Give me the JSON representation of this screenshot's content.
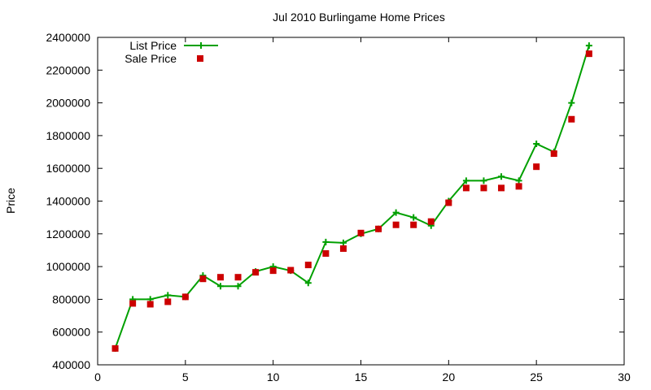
{
  "chart_data": {
    "type": "line",
    "title": "Jul 2010 Burlingame Home Prices",
    "xlabel": "",
    "ylabel": "Price",
    "xlim": [
      0,
      30
    ],
    "ylim": [
      400000,
      2400000
    ],
    "xticks": [
      0,
      5,
      10,
      15,
      20,
      25,
      30
    ],
    "yticks": [
      400000,
      600000,
      800000,
      1000000,
      1200000,
      1400000,
      1600000,
      1800000,
      2000000,
      2200000,
      2400000
    ],
    "grid": false,
    "legend": "top-left",
    "series": [
      {
        "name": "List Price",
        "style": "line-points",
        "marker": "plus",
        "color": "#00a000",
        "x": [
          1,
          2,
          3,
          4,
          5,
          6,
          7,
          8,
          9,
          10,
          11,
          12,
          13,
          14,
          15,
          16,
          17,
          18,
          19,
          20,
          21,
          22,
          23,
          24,
          25,
          26,
          27,
          28
        ],
        "values": [
          500000,
          800000,
          800000,
          825000,
          815000,
          945000,
          880000,
          880000,
          970000,
          1000000,
          975000,
          900000,
          1150000,
          1145000,
          1200000,
          1230000,
          1330000,
          1300000,
          1250000,
          1400000,
          1525000,
          1525000,
          1550000,
          1525000,
          1750000,
          1700000,
          2000000,
          2350000
        ]
      },
      {
        "name": "Sale Price",
        "style": "points",
        "marker": "square",
        "color": "#cc0000",
        "x": [
          1,
          2,
          3,
          4,
          5,
          6,
          7,
          8,
          9,
          10,
          11,
          12,
          13,
          14,
          15,
          16,
          17,
          18,
          19,
          20,
          21,
          22,
          23,
          24,
          25,
          26,
          27,
          28
        ],
        "values": [
          500000,
          775000,
          770000,
          785000,
          815000,
          925000,
          935000,
          935000,
          965000,
          975000,
          978000,
          1010000,
          1080000,
          1110000,
          1205000,
          1230000,
          1255000,
          1255000,
          1275000,
          1390000,
          1480000,
          1480000,
          1480000,
          1490000,
          1610000,
          1690000,
          1900000,
          2300000
        ]
      }
    ]
  }
}
